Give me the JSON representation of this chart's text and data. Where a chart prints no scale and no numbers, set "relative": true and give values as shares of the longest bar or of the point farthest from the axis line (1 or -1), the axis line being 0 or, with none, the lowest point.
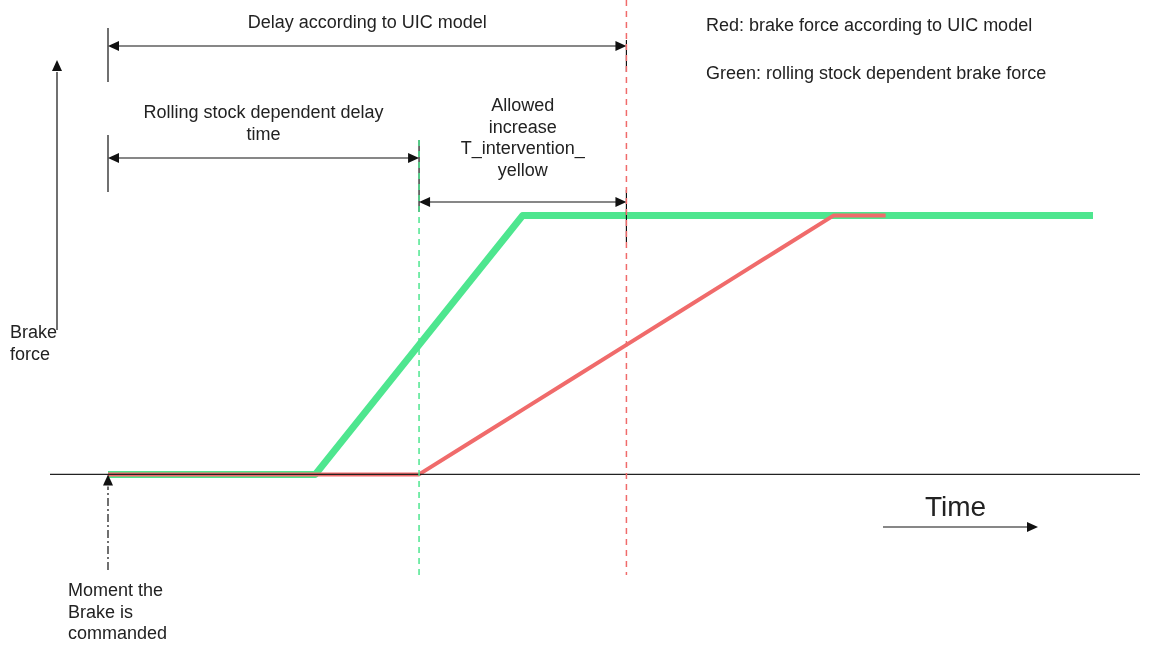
{
  "chart_data": {
    "type": "line",
    "relative": true,
    "legend": false,
    "marker": "none",
    "xlabel": "Time",
    "ylabel": "Brake force",
    "categories": [
      null,
      null,
      null,
      null,
      null,
      null,
      null,
      null,
      null,
      null,
      null,
      null,
      null,
      null,
      null,
      null,
      null,
      null,
      null,
      null
    ],
    "series": [
      {
        "color": "#4ee68f",
        "values": [
          0,
          0,
          0,
          0,
          0,
          0.25,
          0.5,
          0.75,
          1,
          1,
          1,
          1,
          1,
          1,
          1,
          1,
          1,
          1,
          1,
          1
        ]
      },
      {
        "color": "#f06b6b",
        "values": [
          0,
          0,
          0,
          0,
          0,
          0,
          0,
          0.125,
          0.25,
          0.375,
          0.5,
          0.625,
          0.75,
          0.875,
          1,
          1,
          null,
          null,
          null,
          null
        ]
      }
    ],
    "annotations": [
      "Delay according to UIC model",
      "Rolling stock dependent delay time",
      "Allowed increase T_intervention_ yellow",
      "Red: brake force according to UIC model",
      "Green: rolling stock dependent brake force",
      "Moment the Brake is commanded"
    ]
  }
}
